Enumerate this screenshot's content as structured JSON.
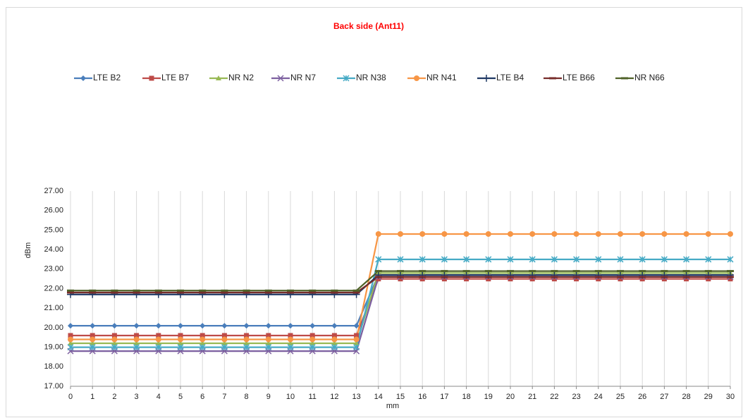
{
  "chart_data": {
    "type": "line",
    "title": "Back side (Ant11)",
    "xlabel": "mm",
    "ylabel": "dBm",
    "x": [
      0,
      1,
      2,
      3,
      4,
      5,
      6,
      7,
      8,
      9,
      10,
      11,
      12,
      13,
      14,
      15,
      16,
      17,
      18,
      19,
      20,
      21,
      22,
      23,
      24,
      25,
      26,
      27,
      28,
      29,
      30
    ],
    "xlim": [
      0,
      30
    ],
    "xticks": [
      0,
      1,
      2,
      3,
      4,
      5,
      6,
      7,
      8,
      9,
      10,
      11,
      12,
      13,
      14,
      15,
      16,
      17,
      18,
      19,
      20,
      21,
      22,
      23,
      24,
      25,
      26,
      27,
      28,
      29,
      30
    ],
    "ylim": [
      17,
      27
    ],
    "yticks": [
      {
        "value": 17,
        "label": "17.00"
      },
      {
        "value": 18,
        "label": "18.00"
      },
      {
        "value": 19,
        "label": "19.00"
      },
      {
        "value": 20,
        "label": "20.00"
      },
      {
        "value": 21,
        "label": "21.00"
      },
      {
        "value": 22,
        "label": "22.00"
      },
      {
        "value": 23,
        "label": "23.00"
      },
      {
        "value": 24,
        "label": "24.00"
      },
      {
        "value": 25,
        "label": "25.00"
      },
      {
        "value": 26,
        "label": "26.00"
      },
      {
        "value": 27,
        "label": "27.00"
      }
    ],
    "grid": "x",
    "legend": "top",
    "series": [
      {
        "name": "LTE B2",
        "color": "#4a7ebb",
        "marker": "diamond",
        "values": [
          20.1,
          20.1,
          20.1,
          20.1,
          20.1,
          20.1,
          20.1,
          20.1,
          20.1,
          20.1,
          20.1,
          20.1,
          20.1,
          20.1,
          22.7,
          22.7,
          22.7,
          22.7,
          22.7,
          22.7,
          22.7,
          22.7,
          22.7,
          22.7,
          22.7,
          22.7,
          22.7,
          22.7,
          22.7,
          22.7,
          22.7
        ]
      },
      {
        "name": "LTE B7",
        "color": "#be4b48",
        "marker": "square",
        "values": [
          19.6,
          19.6,
          19.6,
          19.6,
          19.6,
          19.6,
          19.6,
          19.6,
          19.6,
          19.6,
          19.6,
          19.6,
          19.6,
          19.6,
          22.5,
          22.5,
          22.5,
          22.5,
          22.5,
          22.5,
          22.5,
          22.5,
          22.5,
          22.5,
          22.5,
          22.5,
          22.5,
          22.5,
          22.5,
          22.5,
          22.5
        ]
      },
      {
        "name": "NR N2",
        "color": "#98b954",
        "marker": "triangle",
        "values": [
          19.2,
          19.2,
          19.2,
          19.2,
          19.2,
          19.2,
          19.2,
          19.2,
          19.2,
          19.2,
          19.2,
          19.2,
          19.2,
          19.2,
          22.8,
          22.8,
          22.8,
          22.8,
          22.8,
          22.8,
          22.8,
          22.8,
          22.8,
          22.8,
          22.8,
          22.8,
          22.8,
          22.8,
          22.8,
          22.8,
          22.8
        ]
      },
      {
        "name": "NR N7",
        "color": "#7d60a0",
        "marker": "x",
        "values": [
          18.8,
          18.8,
          18.8,
          18.8,
          18.8,
          18.8,
          18.8,
          18.8,
          18.8,
          18.8,
          18.8,
          18.8,
          18.8,
          18.8,
          22.6,
          22.6,
          22.6,
          22.6,
          22.6,
          22.6,
          22.6,
          22.6,
          22.6,
          22.6,
          22.6,
          22.6,
          22.6,
          22.6,
          22.6,
          22.6,
          22.6
        ]
      },
      {
        "name": "NR N38",
        "color": "#46aac5",
        "marker": "star",
        "values": [
          19.0,
          19.0,
          19.0,
          19.0,
          19.0,
          19.0,
          19.0,
          19.0,
          19.0,
          19.0,
          19.0,
          19.0,
          19.0,
          19.0,
          23.5,
          23.5,
          23.5,
          23.5,
          23.5,
          23.5,
          23.5,
          23.5,
          23.5,
          23.5,
          23.5,
          23.5,
          23.5,
          23.5,
          23.5,
          23.5,
          23.5
        ]
      },
      {
        "name": "NR N41",
        "color": "#f79646",
        "marker": "circle",
        "values": [
          19.4,
          19.4,
          19.4,
          19.4,
          19.4,
          19.4,
          19.4,
          19.4,
          19.4,
          19.4,
          19.4,
          19.4,
          19.4,
          19.4,
          24.8,
          24.8,
          24.8,
          24.8,
          24.8,
          24.8,
          24.8,
          24.8,
          24.8,
          24.8,
          24.8,
          24.8,
          24.8,
          24.8,
          24.8,
          24.8,
          24.8
        ]
      },
      {
        "name": "LTE B4",
        "color": "#1f3864",
        "marker": "plus",
        "values": [
          21.7,
          21.7,
          21.7,
          21.7,
          21.7,
          21.7,
          21.7,
          21.7,
          21.7,
          21.7,
          21.7,
          21.7,
          21.7,
          21.7,
          22.7,
          22.7,
          22.7,
          22.7,
          22.7,
          22.7,
          22.7,
          22.7,
          22.7,
          22.7,
          22.7,
          22.7,
          22.7,
          22.7,
          22.7,
          22.7,
          22.7
        ]
      },
      {
        "name": "LTE B66",
        "color": "#772c2a",
        "marker": "dash",
        "values": [
          21.8,
          21.8,
          21.8,
          21.8,
          21.8,
          21.8,
          21.8,
          21.8,
          21.8,
          21.8,
          21.8,
          21.8,
          21.8,
          21.8,
          22.6,
          22.6,
          22.6,
          22.6,
          22.6,
          22.6,
          22.6,
          22.6,
          22.6,
          22.6,
          22.6,
          22.6,
          22.6,
          22.6,
          22.6,
          22.6,
          22.6
        ]
      },
      {
        "name": "NR N66",
        "color": "#4f6228",
        "marker": "dash",
        "values": [
          21.9,
          21.9,
          21.9,
          21.9,
          21.9,
          21.9,
          21.9,
          21.9,
          21.9,
          21.9,
          21.9,
          21.9,
          21.9,
          21.9,
          22.9,
          22.9,
          22.9,
          22.9,
          22.9,
          22.9,
          22.9,
          22.9,
          22.9,
          22.9,
          22.9,
          22.9,
          22.9,
          22.9,
          22.9,
          22.9,
          22.9
        ]
      }
    ]
  }
}
